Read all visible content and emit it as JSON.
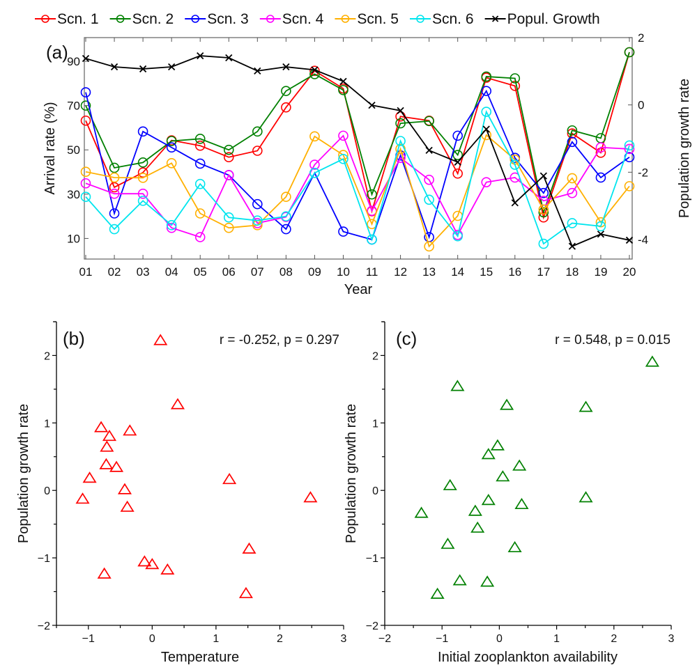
{
  "chart_data": [
    {
      "type": "line",
      "panel_label": "(a)",
      "xlabel": "Year",
      "ylabel": "Arrival rate (%)",
      "y2label": "Population growth rate",
      "categories": [
        "01",
        "02",
        "03",
        "04",
        "05",
        "06",
        "07",
        "08",
        "09",
        "10",
        "11",
        "12",
        "13",
        "14",
        "15",
        "16",
        "17",
        "18",
        "19",
        "20"
      ],
      "ylim": [
        0.7,
        100.7
      ],
      "yticks": [
        10,
        30,
        50,
        70,
        90
      ],
      "y2lim": [
        -4.58,
        2.0
      ],
      "y2ticks": [
        -4,
        -2,
        0,
        2
      ],
      "legend_position": "top",
      "series": [
        {
          "name": "Scn. 1",
          "color": "#ff0000",
          "marker": "circle",
          "axis": "left",
          "values": [
            63.2,
            33.1,
            39.8,
            54.3,
            51.9,
            46.7,
            49.6,
            69.2,
            85.7,
            77.7,
            22.3,
            65.1,
            63.2,
            39.3,
            82.6,
            78.9,
            19.5,
            57.4,
            48.7,
            94.1
          ]
        },
        {
          "name": "Scn. 2",
          "color": "#008000",
          "marker": "circle",
          "axis": "left",
          "values": [
            70.0,
            41.9,
            44.3,
            54.0,
            55.0,
            50.0,
            58.3,
            76.6,
            84.2,
            77.0,
            29.9,
            62.0,
            63.0,
            47.7,
            83.1,
            82.3,
            21.8,
            58.8,
            55.3,
            94.1
          ]
        },
        {
          "name": "Scn. 3",
          "color": "#0000ff",
          "marker": "circle",
          "axis": "left",
          "values": [
            76.0,
            21.3,
            58.3,
            51.1,
            43.8,
            38.6,
            25.5,
            14.2,
            39.6,
            13.1,
            9.5,
            47.5,
            10.6,
            56.4,
            76.6,
            46.4,
            30.5,
            53.6,
            37.5,
            46.7
          ]
        },
        {
          "name": "Scn. 4",
          "color": "#ff00ff",
          "marker": "circle",
          "axis": "left",
          "values": [
            34.9,
            30.2,
            30.2,
            14.8,
            10.6,
            38.6,
            16.9,
            19.7,
            43.3,
            56.4,
            22.5,
            46.4,
            36.5,
            11.6,
            35.4,
            37.5,
            27.0,
            30.5,
            51.1,
            50.4
          ]
        },
        {
          "name": "Scn. 5",
          "color": "#ffb000",
          "marker": "circle",
          "axis": "left",
          "values": [
            40.1,
            37.5,
            37.4,
            44.0,
            21.3,
            14.8,
            16.0,
            28.8,
            56.1,
            47.7,
            16.5,
            50.4,
            6.4,
            20.2,
            56.7,
            45.6,
            23.1,
            37.2,
            17.3,
            33.6
          ]
        },
        {
          "name": "Scn. 6",
          "color": "#00e5ee",
          "marker": "circle",
          "axis": "left",
          "values": [
            28.8,
            14.2,
            27.0,
            16.0,
            34.6,
            19.5,
            18.1,
            20.0,
            39.6,
            45.9,
            9.5,
            54.0,
            27.5,
            11.0,
            67.2,
            43.3,
            7.6,
            16.9,
            15.5,
            52.0
          ]
        },
        {
          "name": "Popul. Growth",
          "color": "#000000",
          "marker": "x",
          "axis": "right",
          "values": [
            1.38,
            1.13,
            1.07,
            1.13,
            1.46,
            1.4,
            1.01,
            1.13,
            1.04,
            0.7,
            -0.01,
            -0.17,
            -1.35,
            -1.7,
            -0.72,
            -2.91,
            -2.11,
            -4.2,
            -3.84,
            -4.02
          ]
        }
      ]
    },
    {
      "type": "scatter",
      "panel_label": "(b)",
      "xlabel": "Temperature",
      "ylabel": "Population growth rate",
      "annotation": "r = -0.252, p = 0.297",
      "xlim": [
        -1.5,
        3
      ],
      "ylim": [
        -2,
        2.5
      ],
      "xticks": [
        -1,
        0,
        1,
        2,
        3
      ],
      "xtick_labels": [
        "−1",
        "0",
        "1",
        "2",
        "3"
      ],
      "yticks": [
        -2,
        -1,
        0,
        1,
        2
      ],
      "ytick_labels": [
        "−2",
        "−1",
        "0",
        "1",
        "2"
      ],
      "marker": "triangle",
      "color": "#ff0000",
      "points": [
        [
          0.13,
          2.22
        ],
        [
          0.4,
          1.27
        ],
        [
          -0.8,
          0.93
        ],
        [
          -0.35,
          0.88
        ],
        [
          -0.67,
          0.8
        ],
        [
          -0.71,
          0.64
        ],
        [
          -0.72,
          0.38
        ],
        [
          -0.56,
          0.34
        ],
        [
          -0.98,
          0.18
        ],
        [
          1.21,
          0.16
        ],
        [
          -0.43,
          0.01
        ],
        [
          -1.09,
          -0.13
        ],
        [
          2.48,
          -0.11
        ],
        [
          -0.39,
          -0.25
        ],
        [
          1.52,
          -0.87
        ],
        [
          -0.12,
          -1.06
        ],
        [
          0.0,
          -1.1
        ],
        [
          0.24,
          -1.18
        ],
        [
          -0.75,
          -1.24
        ],
        [
          1.47,
          -1.53
        ]
      ]
    },
    {
      "type": "scatter",
      "panel_label": "(c)",
      "xlabel": "Initial zooplankton availability",
      "ylabel": "Population growth rate",
      "annotation": "r = 0.548, p = 0.015",
      "xlim": [
        -2,
        3
      ],
      "ylim": [
        -2,
        2.5
      ],
      "xticks": [
        -2,
        -1,
        0,
        1,
        2,
        3
      ],
      "xtick_labels": [
        "−2",
        "−1",
        "0",
        "1",
        "2",
        "3"
      ],
      "yticks": [
        -2,
        -1,
        0,
        1,
        2
      ],
      "ytick_labels": [
        "−2",
        "−1",
        "0",
        "1",
        "2"
      ],
      "marker": "triangle",
      "color": "#008000",
      "points": [
        [
          2.67,
          1.9
        ],
        [
          -0.73,
          1.54
        ],
        [
          0.13,
          1.26
        ],
        [
          1.51,
          1.23
        ],
        [
          -0.03,
          0.66
        ],
        [
          -0.19,
          0.53
        ],
        [
          0.35,
          0.36
        ],
        [
          0.06,
          0.2
        ],
        [
          -0.86,
          0.07
        ],
        [
          1.51,
          -0.11
        ],
        [
          -0.19,
          -0.15
        ],
        [
          0.39,
          -0.21
        ],
        [
          -0.42,
          -0.31
        ],
        [
          -1.36,
          -0.34
        ],
        [
          -0.38,
          -0.56
        ],
        [
          -0.9,
          -0.8
        ],
        [
          0.27,
          -0.85
        ],
        [
          -0.69,
          -1.34
        ],
        [
          -0.21,
          -1.36
        ],
        [
          -1.08,
          -1.54
        ]
      ]
    }
  ]
}
